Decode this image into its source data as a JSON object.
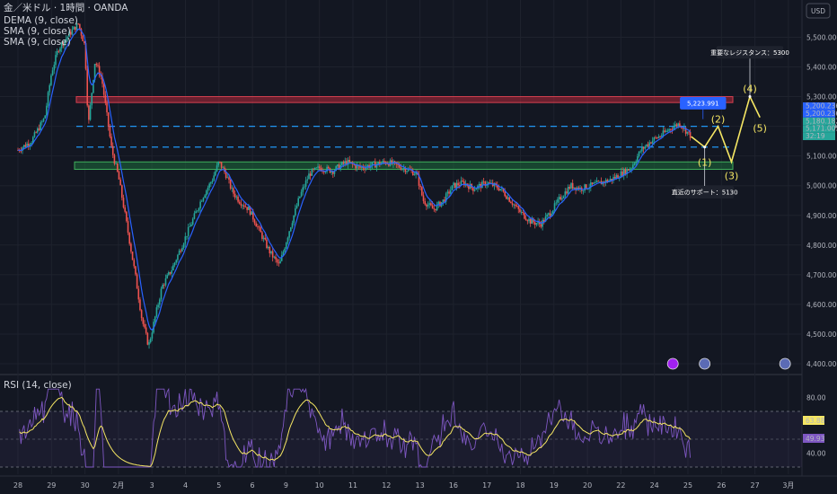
{
  "legend": {
    "symbol": "金／米ドル · 1時間 · OANDA",
    "dema": "DEMA (9, close)",
    "sma1": "SMA (9, close)",
    "sma2": "SMA (9, close)",
    "rsi": "RSI (14, close)"
  },
  "currency": "USD",
  "colors": {
    "background": "#131722",
    "up": "#26a69a",
    "down": "#ef5350",
    "dema": "#2962ff",
    "rsi_line": "#7e57c2",
    "rsi_ma": "#f5e663",
    "wave": "#f5e663",
    "resistance_zone": "#b2283a",
    "support_zone": "#1e6b3c",
    "dashed": "#2196f3"
  },
  "chart_data": [
    {
      "type": "candlestick",
      "title": "金／米ドル · 1時間 · OANDA",
      "ylim": [
        4380,
        5620
      ],
      "y_ticks": [
        "5,500.000",
        "5,400.000",
        "5,300.000",
        "5,200.000",
        "5,100.000",
        "5,000.000",
        "4,900.000",
        "4,800.000",
        "4,700.000",
        "4,600.000",
        "4,500.000",
        "4,400.000"
      ],
      "x_ticks": [
        "28",
        "29",
        "30",
        "2月",
        "3",
        "4",
        "5",
        "6",
        "9",
        "10",
        "11",
        "12",
        "13",
        "16",
        "17",
        "18",
        "19",
        "20",
        "22",
        "24",
        "25",
        "26",
        "27",
        "3月"
      ],
      "price_path": [
        [
          0,
          5120
        ],
        [
          0.4,
          5150
        ],
        [
          0.8,
          5230
        ],
        [
          1.0,
          5380
        ],
        [
          1.2,
          5460
        ],
        [
          1.6,
          5520
        ],
        [
          1.8,
          5545
        ],
        [
          2.0,
          5470
        ],
        [
          2.1,
          5200
        ],
        [
          2.3,
          5420
        ],
        [
          2.5,
          5360
        ],
        [
          2.8,
          5120
        ],
        [
          3.0,
          5030
        ],
        [
          3.2,
          4900
        ],
        [
          3.5,
          4700
        ],
        [
          3.7,
          4550
        ],
        [
          3.9,
          4460
        ],
        [
          4.1,
          4560
        ],
        [
          4.3,
          4660
        ],
        [
          4.6,
          4720
        ],
        [
          4.9,
          4800
        ],
        [
          5.2,
          4880
        ],
        [
          5.5,
          4960
        ],
        [
          5.8,
          5020
        ],
        [
          6.0,
          5080
        ],
        [
          6.2,
          5040
        ],
        [
          6.4,
          4980
        ],
        [
          6.6,
          4950
        ],
        [
          6.9,
          4920
        ],
        [
          7.2,
          4850
        ],
        [
          7.5,
          4780
        ],
        [
          7.8,
          4730
        ],
        [
          8.1,
          4850
        ],
        [
          8.4,
          4960
        ],
        [
          8.7,
          5040
        ],
        [
          9.0,
          5060
        ],
        [
          9.4,
          5050
        ],
        [
          9.8,
          5080
        ],
        [
          10.2,
          5060
        ],
        [
          10.6,
          5070
        ],
        [
          11.0,
          5080
        ],
        [
          11.5,
          5060
        ],
        [
          11.9,
          5040
        ],
        [
          12.1,
          4950
        ],
        [
          12.4,
          4920
        ],
        [
          12.7,
          4950
        ],
        [
          13.0,
          5000
        ],
        [
          13.3,
          5010
        ],
        [
          13.6,
          4990
        ],
        [
          14.0,
          5010
        ],
        [
          14.4,
          4990
        ],
        [
          14.7,
          4950
        ],
        [
          15.0,
          4910
        ],
        [
          15.3,
          4880
        ],
        [
          15.6,
          4870
        ],
        [
          15.9,
          4910
        ],
        [
          16.2,
          4960
        ],
        [
          16.5,
          5000
        ],
        [
          16.8,
          4990
        ],
        [
          17.1,
          5000
        ],
        [
          17.4,
          5010
        ],
        [
          17.7,
          5020
        ],
        [
          18.0,
          5040
        ],
        [
          18.3,
          5060
        ],
        [
          18.6,
          5120
        ],
        [
          18.9,
          5150
        ],
        [
          19.2,
          5170
        ],
        [
          19.5,
          5195
        ],
        [
          19.75,
          5210
        ],
        [
          19.9,
          5190
        ],
        [
          20.1,
          5165
        ]
      ],
      "annotations": {
        "resistance_label": "重要なレジスタンス：5300",
        "support_label": "直近のサポート：5130",
        "price_tag": "5,223.991",
        "right_tags": [
          "5,200.236",
          "5,200.236",
          "5,180.182",
          "5,171.005",
          "32:19"
        ],
        "wave_labels": [
          "(1)",
          "(2)",
          "(3)",
          "(4)",
          "(5)"
        ],
        "dashed_levels": [
          5200,
          5130
        ],
        "resistance_zone": [
          5280,
          5300
        ],
        "support_zone": [
          5055,
          5080
        ]
      }
    },
    {
      "type": "line",
      "title": "RSI (14, close)",
      "ylim": [
        30,
        90
      ],
      "y_ticks": [
        "80.00",
        "40.00"
      ],
      "last_values": [
        "63.88",
        "49.93"
      ],
      "bands": [
        70,
        30
      ]
    }
  ]
}
